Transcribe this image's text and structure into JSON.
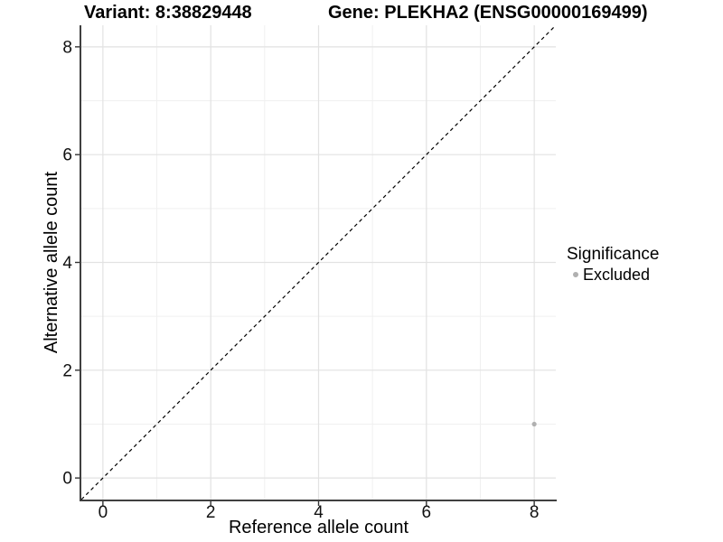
{
  "header": {
    "variant_title": "Variant: 8:38829448",
    "gene_title": "Gene: PLEKHA2 (ENSG00000169499)"
  },
  "legend": {
    "title": "Significance",
    "items": [
      {
        "label": "Excluded",
        "marker": "circle-icon",
        "color": "#b0b0b0"
      }
    ]
  },
  "chart_data": {
    "type": "scatter",
    "title": "Variant: 8:38829448    Gene: PLEKHA2 (ENSG00000169499)",
    "xlabel": "Reference allele count",
    "ylabel": "Alternative allele count",
    "xlim": [
      -0.4,
      8.4
    ],
    "ylim": [
      -0.4,
      8.4
    ],
    "xticks": [
      0,
      2,
      4,
      6,
      8
    ],
    "yticks": [
      0,
      2,
      4,
      6,
      8
    ],
    "minor_xticks": [
      1,
      3,
      5,
      7
    ],
    "minor_yticks": [
      1,
      3,
      5,
      7
    ],
    "grid": "major+minor",
    "legend_position": "right",
    "series": [
      {
        "name": "Excluded",
        "marker": "circle",
        "color": "#b0b0b0",
        "points": [
          {
            "x": 8,
            "y": 1
          }
        ]
      }
    ],
    "reference_line": {
      "type": "identity",
      "slope": 1,
      "intercept": 0,
      "style": "dashed",
      "color": "#000000"
    }
  },
  "style": {
    "background": "#ffffff",
    "major_grid_color": "#e2e2e2",
    "minor_grid_color": "#f0f0f0",
    "axis_line_color": "#404040",
    "tick_color": "#333333",
    "text_color": "#111111",
    "point_color": "#b0b0b0"
  }
}
